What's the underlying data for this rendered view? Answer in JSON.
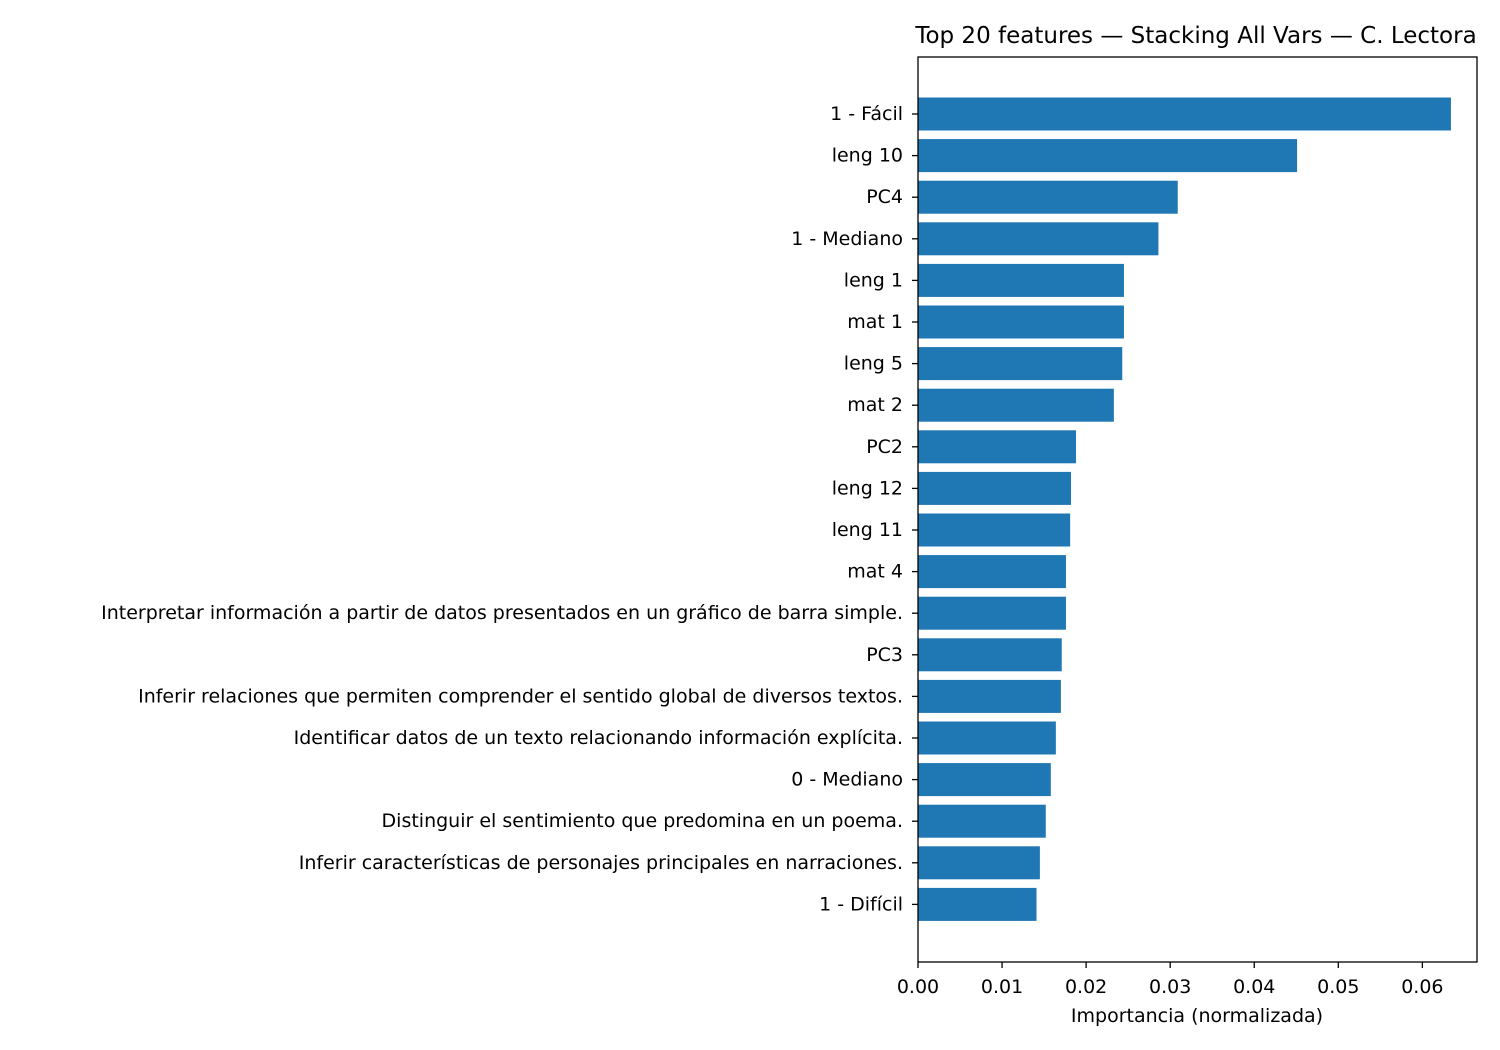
{
  "chart_data": {
    "type": "bar",
    "orientation": "horizontal",
    "title": "Top 20 features — Stacking All Vars — C. Lectora",
    "xlabel": "Importancia (normalizada)",
    "ylabel": "",
    "categories": [
      "1 - Fácil",
      "leng 10",
      "PC4",
      "1 - Mediano",
      "leng 1",
      "mat 1",
      "leng 5",
      "mat 2",
      "PC2",
      "leng 12",
      "leng 11",
      "mat 4",
      "Interpretar información a partir de datos presentados en un gráfico de barra simple.",
      "PC3",
      "Inferir relaciones que permiten comprender el sentido global de diversos textos.",
      "Identificar datos de un texto relacionando información explícita.",
      "0 - Mediano",
      "Distinguir el sentimiento que predomina en un poema.",
      "Inferir características de personajes principales en narraciones.",
      "1 - Difícil"
    ],
    "values": [
      0.0634,
      0.0451,
      0.0309,
      0.0286,
      0.0245,
      0.0245,
      0.0243,
      0.0233,
      0.0188,
      0.0182,
      0.0181,
      0.0176,
      0.0176,
      0.0171,
      0.017,
      0.0164,
      0.0158,
      0.0152,
      0.0145,
      0.0141
    ],
    "xlim": [
      0,
      0.0665
    ],
    "xticks": [
      "0.00",
      "0.01",
      "0.02",
      "0.03",
      "0.04",
      "0.05",
      "0.06"
    ],
    "bar_color": "#1f77b4",
    "grid": false,
    "legend": "none"
  }
}
